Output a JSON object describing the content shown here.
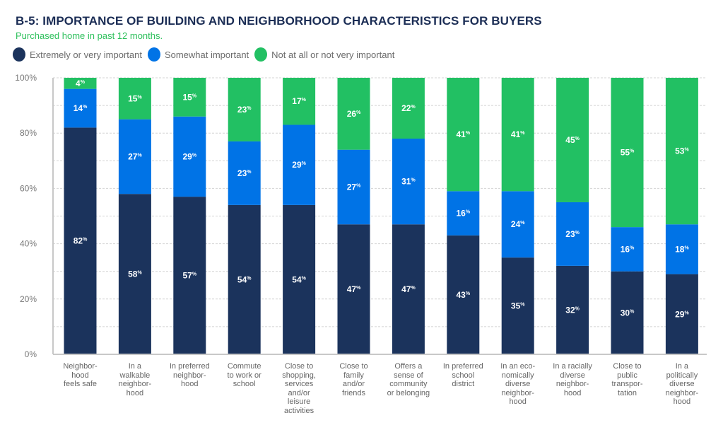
{
  "chart_data": {
    "type": "bar",
    "stacked": true,
    "title": "B-5: IMPORTANCE OF BUILDING AND NEIGHBORHOOD CHARACTERISTICS FOR BUYERS",
    "subtitle": "Purchased home in past 12 months.",
    "xlabel": "",
    "ylabel": "",
    "ylim": [
      0,
      100
    ],
    "yticks": [
      "0%",
      "20%",
      "40%",
      "60%",
      "80%",
      "100%"
    ],
    "grid": true,
    "legend_position": "top-left",
    "categories": [
      "Neighbor-\nhood\nfeels safe",
      "In a\nwalkable\nneighbor-\nhood",
      "In preferred\nneighbor-\nhood",
      "Commute\nto work or\nschool",
      "Close to\nshopping,\nservices\nand/or\nleisure\nactivities",
      "Close to\nfamily\nand/or\nfriends",
      "Offers a\nsense of\ncommunity\nor belonging",
      "In preferred\nschool\ndistrict",
      "In an eco-\nnomically\ndiverse\nneighbor-\nhood",
      "In a racially\ndiverse\nneighbor-\nhood",
      "Close to\npublic\ntranspor-\ntation",
      "In a\npolitically\ndiverse\nneighbor-\nhood"
    ],
    "series": [
      {
        "name": "Extremely or very important",
        "color": "#1b335c",
        "values": [
          82,
          58,
          57,
          54,
          54,
          47,
          47,
          43,
          35,
          32,
          30,
          29
        ]
      },
      {
        "name": "Somewhat important",
        "color": "#0073e6",
        "values": [
          14,
          27,
          29,
          23,
          29,
          27,
          31,
          16,
          24,
          23,
          16,
          18
        ]
      },
      {
        "name": "Not at all or not very important",
        "color": "#22c063",
        "values": [
          4,
          15,
          15,
          23,
          17,
          26,
          22,
          41,
          41,
          45,
          55,
          53
        ]
      }
    ],
    "value_suffix": "%"
  }
}
